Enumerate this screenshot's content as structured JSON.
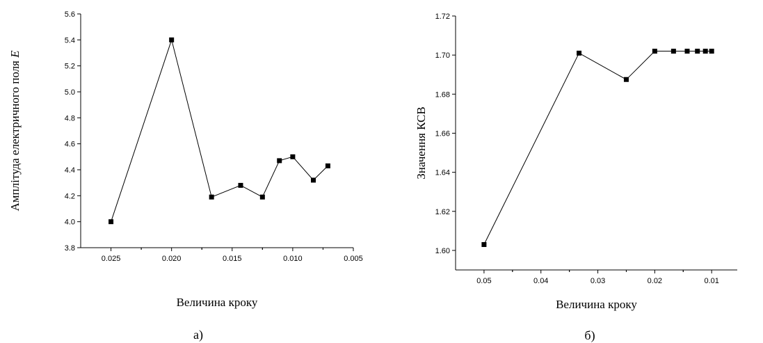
{
  "chart_data": [
    {
      "type": "line",
      "panel_label": "а)",
      "xlabel": "Величина кроку",
      "ylabel": "Амплітуда електричного поля ",
      "ylabel_italic": "E",
      "xlim": [
        0.0275,
        0.005
      ],
      "ylim": [
        3.8,
        5.6
      ],
      "x_reversed": true,
      "xticks": [
        "0.025",
        "0.020",
        "0.015",
        "0.010",
        "0.005"
      ],
      "xtick_values": [
        0.025,
        0.02,
        0.015,
        0.01,
        0.005
      ],
      "yticks": [
        "3.8",
        "4.0",
        "4.2",
        "4.4",
        "4.6",
        "4.8",
        "5.0",
        "5.2",
        "5.4",
        "5.6"
      ],
      "ytick_values": [
        3.8,
        4.0,
        4.2,
        4.4,
        4.6,
        4.8,
        5.0,
        5.2,
        5.4,
        5.6
      ],
      "marker": "square",
      "color": "#000000",
      "grid": false,
      "series": [
        {
          "x": [
            0.025,
            0.02,
            0.0167,
            0.0143,
            0.0125,
            0.0111,
            0.01,
            0.0083,
            0.0071
          ],
          "y": [
            4.0,
            5.4,
            4.19,
            4.28,
            4.19,
            4.47,
            4.5,
            4.32,
            4.43
          ]
        }
      ]
    },
    {
      "type": "line",
      "panel_label": "б)",
      "xlabel": "Величина кроку",
      "ylabel": "Значення КСВ",
      "ylabel_italic": "",
      "xlim": [
        0.055,
        0.0055
      ],
      "ylim": [
        1.59,
        1.72
      ],
      "x_reversed": true,
      "xticks": [
        "0.05",
        "0.04",
        "0.03",
        "0.02",
        "0.01"
      ],
      "xtick_values": [
        0.05,
        0.04,
        0.03,
        0.02,
        0.01
      ],
      "yticks": [
        "1.60",
        "1.62",
        "1.64",
        "1.66",
        "1.68",
        "1.70",
        "1.72"
      ],
      "ytick_values": [
        1.6,
        1.62,
        1.64,
        1.66,
        1.68,
        1.7,
        1.72
      ],
      "marker": "square",
      "color": "#000000",
      "grid": false,
      "series": [
        {
          "x": [
            0.05,
            0.0333,
            0.025,
            0.02,
            0.0167,
            0.0143,
            0.0125,
            0.0111,
            0.01
          ],
          "y": [
            1.603,
            1.701,
            1.6875,
            1.702,
            1.702,
            1.702,
            1.702,
            1.702,
            1.702
          ]
        }
      ]
    }
  ]
}
